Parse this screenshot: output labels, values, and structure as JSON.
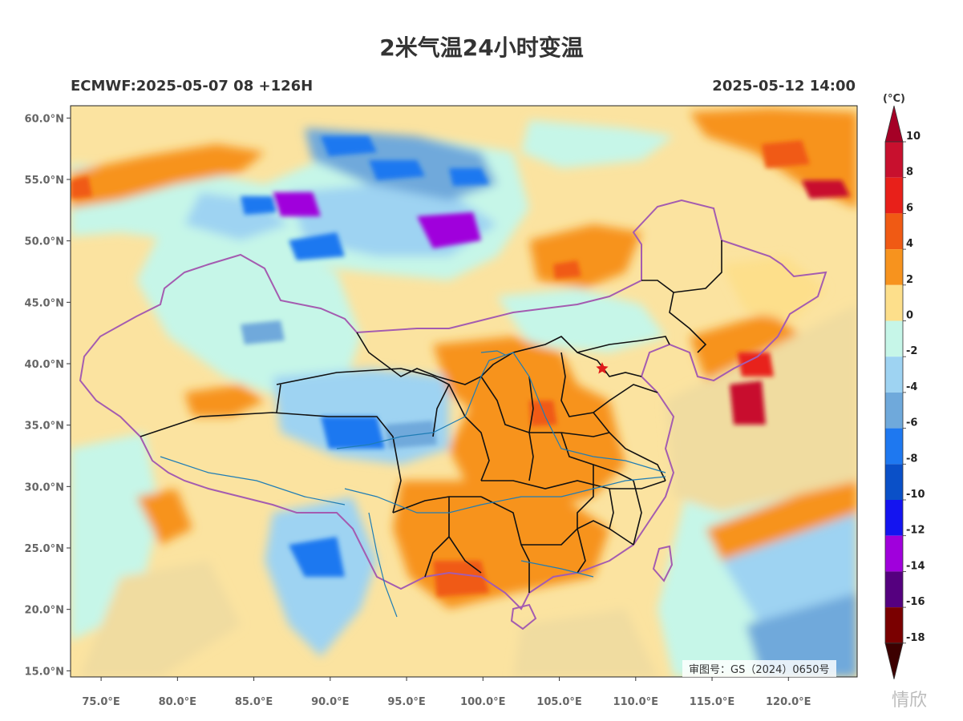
{
  "title": "2米气温24小时变温",
  "subtitle_left": "ECMWF:2025-05-07 08 +126H",
  "subtitle_right": "2025-05-12 14:00",
  "map": {
    "lon_range": [
      73,
      124.5
    ],
    "lat_range": [
      14.5,
      61
    ],
    "lon_ticks": [
      "75.0°E",
      "80.0°E",
      "85.0°E",
      "90.0°E",
      "95.0°E",
      "100.0°E",
      "105.0°E",
      "110.0°E",
      "115.0°E",
      "120.0°E"
    ],
    "lat_ticks": [
      "60.0°N",
      "55.0°N",
      "50.0°N",
      "45.0°N",
      "40.0°N",
      "35.0°N",
      "30.0°N",
      "25.0°N",
      "20.0°N",
      "15.0°N"
    ],
    "marker": "red-star"
  },
  "legend": {
    "unit": "(°C)",
    "labels": [
      "10",
      "8",
      "6",
      "4",
      "2",
      "0",
      "-2",
      "-4",
      "-6",
      "-8",
      "-10",
      "-12",
      "-14",
      "-16",
      "-18"
    ],
    "colors": [
      "#a50026",
      "#c8102e",
      "#e8201a",
      "#f05a14",
      "#f7931e",
      "#fddf8b",
      "#c6f6e8",
      "#9ed3f2",
      "#6fa9db",
      "#1e78f0",
      "#0a50c8",
      "#1414f0",
      "#a000dc",
      "#55007f",
      "#7a0000",
      "#3c0000"
    ]
  },
  "approval_text": "审图号：GS（2024）0650号",
  "watermark": "情欣"
}
